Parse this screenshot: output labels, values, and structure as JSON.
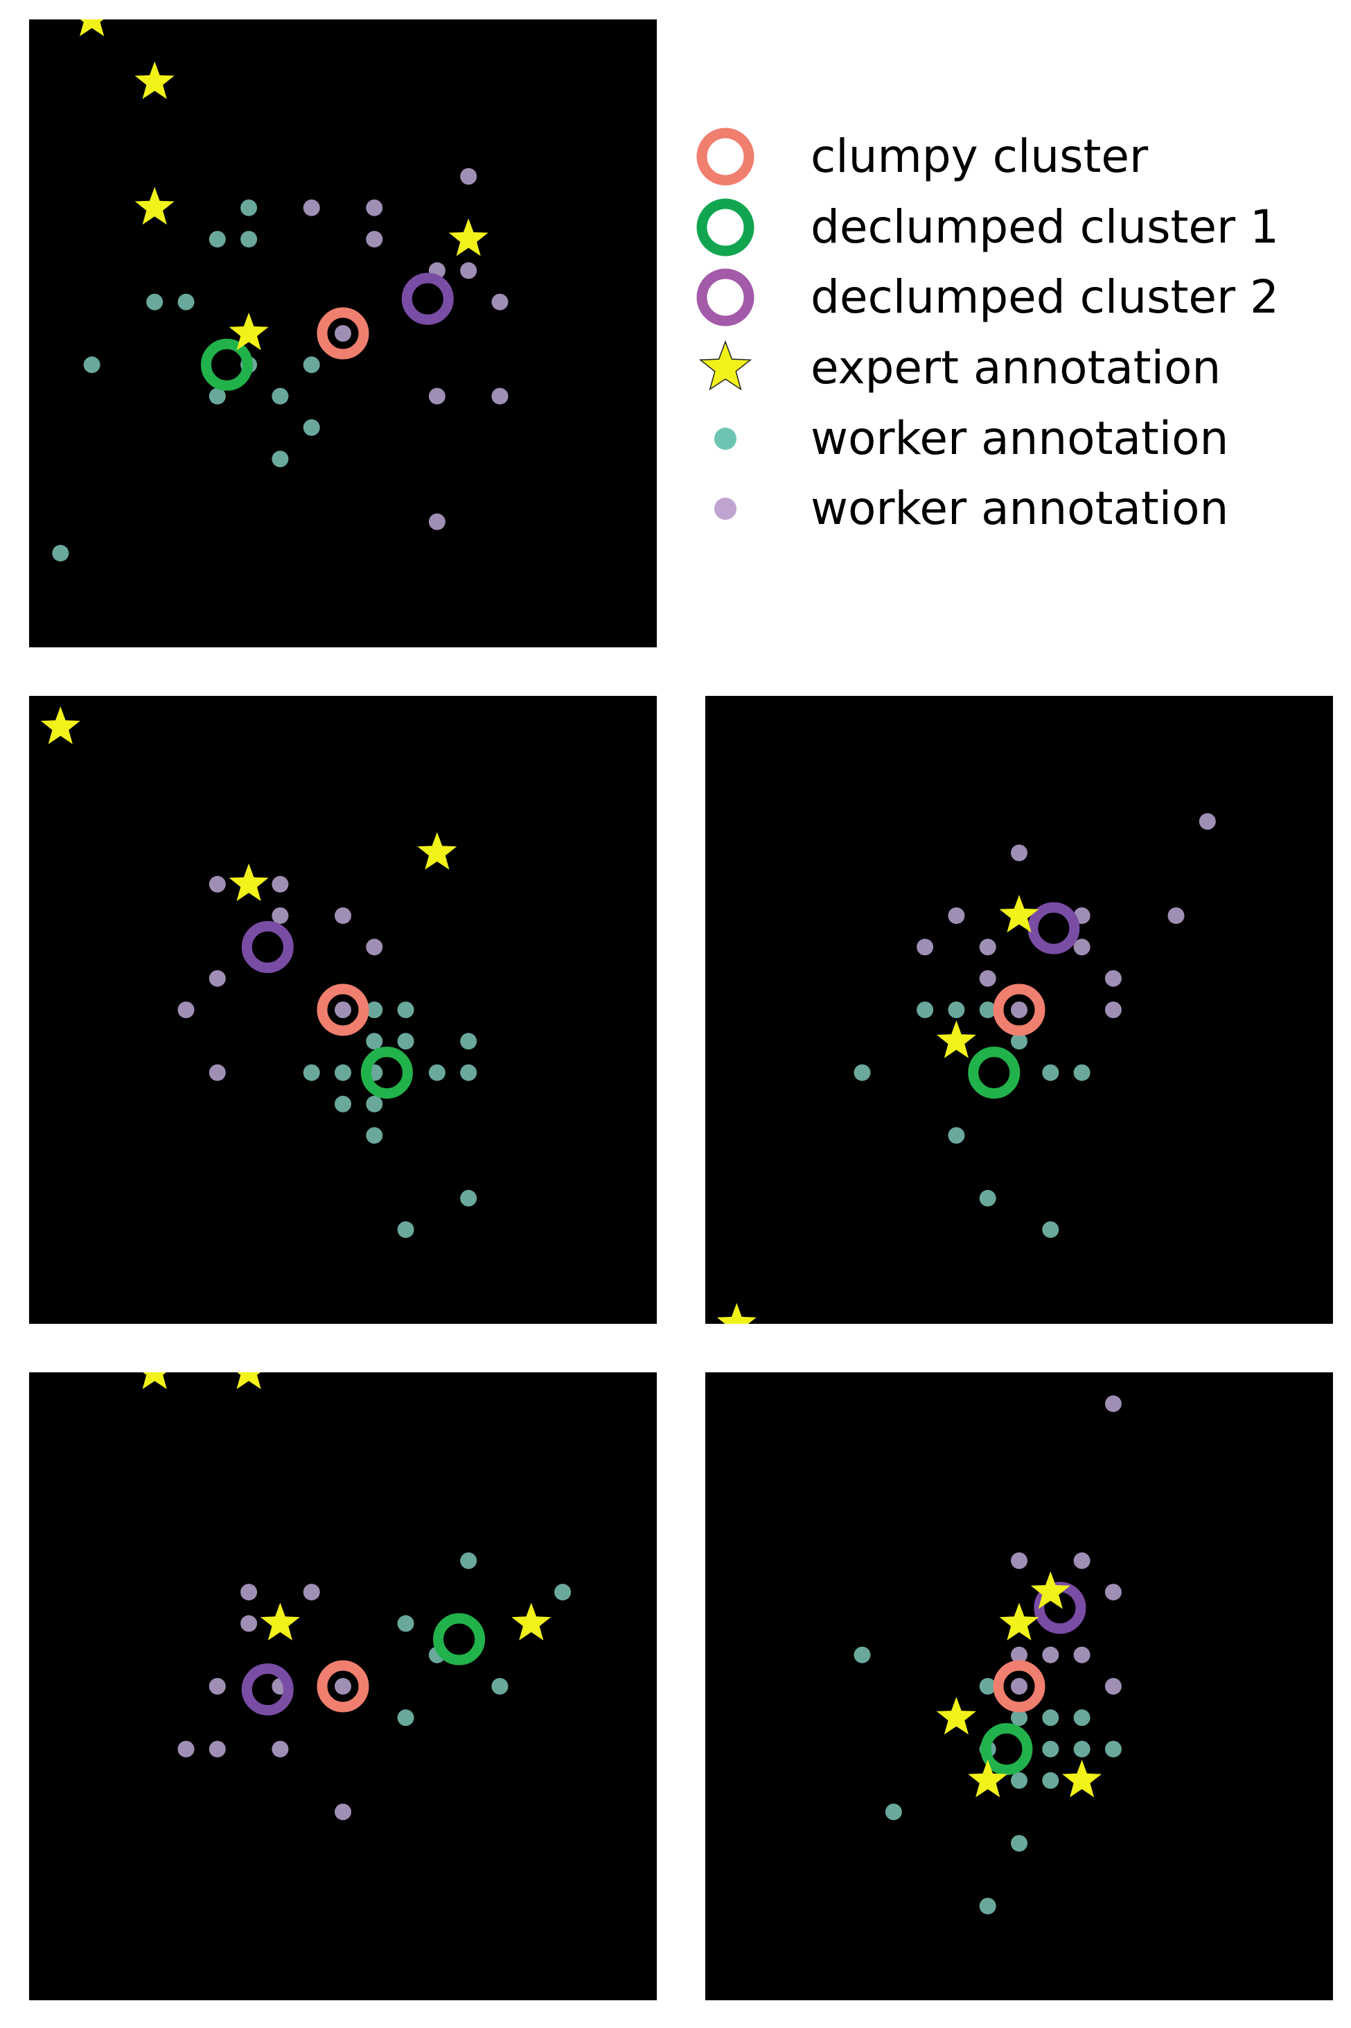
{
  "legend": {
    "entries": [
      {
        "key": "clumpy",
        "label": "clumpy cluster",
        "marker": "ring",
        "color": "#f07f6f"
      },
      {
        "key": "declump1",
        "label": "declumped cluster 1",
        "marker": "ring",
        "color": "#11a54f"
      },
      {
        "key": "declump2",
        "label": "declumped cluster 2",
        "marker": "ring",
        "color": "#a35aa9"
      },
      {
        "key": "expert",
        "label": "expert annotation",
        "marker": "star",
        "color": "#f2f21b"
      },
      {
        "key": "worker_teal",
        "label": "worker annotation",
        "marker": "dot",
        "color": "#6dc4b2"
      },
      {
        "key": "worker_purple",
        "label": "worker annotation",
        "marker": "dot",
        "color": "#bfa3d1"
      }
    ]
  },
  "colors": {
    "panel_bg": "#000000",
    "ring_clumpy": "#f07f6f",
    "ring_d1": "#22b24c",
    "ring_d2": "#7a4da5",
    "star": "#f2f21b",
    "worker_teal": "#6aa89c",
    "worker_purple": "#a08fb5",
    "page_bg": "#ffffff"
  },
  "chart_data": [
    {
      "type": "scatter",
      "panel": "top-left",
      "xlim": [
        0,
        20
      ],
      "ylim": [
        0,
        20
      ],
      "grid": false,
      "stars": [
        [
          2,
          20
        ],
        [
          4,
          18
        ],
        [
          4,
          14
        ],
        [
          14,
          13
        ],
        [
          7,
          10
        ]
      ],
      "teal": [
        [
          7,
          14
        ],
        [
          6,
          13
        ],
        [
          7,
          13
        ],
        [
          4,
          11
        ],
        [
          5,
          11
        ],
        [
          2,
          9
        ],
        [
          7,
          9
        ],
        [
          9,
          9
        ],
        [
          6,
          8
        ],
        [
          8,
          8
        ],
        [
          9,
          7
        ],
        [
          8,
          6
        ],
        [
          1,
          3
        ]
      ],
      "purple": [
        [
          9,
          14
        ],
        [
          11,
          14
        ],
        [
          11,
          13
        ],
        [
          14,
          15
        ],
        [
          13,
          12
        ],
        [
          14,
          12
        ],
        [
          15,
          11
        ],
        [
          10,
          10
        ],
        [
          13,
          8
        ],
        [
          15,
          8
        ],
        [
          13,
          4
        ]
      ],
      "clumpy": [
        10,
        10
      ],
      "declump1": [
        6.3,
        9
      ],
      "declump2": [
        12.7,
        11.1
      ]
    },
    {
      "type": "scatter",
      "panel": "middle-left",
      "xlim": [
        0,
        20
      ],
      "ylim": [
        0,
        20
      ],
      "grid": false,
      "stars": [
        [
          1,
          19
        ],
        [
          13,
          15
        ],
        [
          7,
          14
        ]
      ],
      "teal": [
        [
          11,
          10
        ],
        [
          12,
          10
        ],
        [
          11,
          9
        ],
        [
          12,
          9
        ],
        [
          9,
          8
        ],
        [
          10,
          8
        ],
        [
          11,
          8
        ],
        [
          13,
          8
        ],
        [
          14,
          8
        ],
        [
          14,
          9
        ],
        [
          11,
          7
        ],
        [
          10,
          7
        ],
        [
          11,
          6
        ],
        [
          14,
          4
        ],
        [
          12,
          3
        ]
      ],
      "purple": [
        [
          6,
          14
        ],
        [
          8,
          14
        ],
        [
          8,
          13
        ],
        [
          10,
          13
        ],
        [
          11,
          12
        ],
        [
          6,
          11
        ],
        [
          5,
          10
        ],
        [
          6,
          8
        ],
        [
          10,
          10
        ]
      ],
      "clumpy": [
        10,
        10
      ],
      "declump1": [
        11.4,
        8
      ],
      "declump2": [
        7.6,
        12
      ]
    },
    {
      "type": "scatter",
      "panel": "middle-right",
      "xlim": [
        0,
        20
      ],
      "ylim": [
        0,
        20
      ],
      "grid": false,
      "stars": [
        [
          1,
          0
        ],
        [
          10,
          13
        ],
        [
          8,
          9
        ]
      ],
      "teal": [
        [
          7,
          10
        ],
        [
          8,
          10
        ],
        [
          9,
          10
        ],
        [
          10,
          9
        ],
        [
          11,
          8
        ],
        [
          12,
          8
        ],
        [
          5,
          8
        ],
        [
          8,
          6
        ],
        [
          9,
          4
        ],
        [
          11,
          3
        ]
      ],
      "purple": [
        [
          16,
          16
        ],
        [
          10,
          15
        ],
        [
          8,
          13
        ],
        [
          7,
          12
        ],
        [
          9,
          12
        ],
        [
          12,
          13
        ],
        [
          12,
          12
        ],
        [
          15,
          13
        ],
        [
          9,
          11
        ],
        [
          13,
          11
        ],
        [
          13,
          10
        ],
        [
          10,
          10
        ]
      ],
      "clumpy": [
        10,
        10
      ],
      "declump1": [
        9.2,
        8
      ],
      "declump2": [
        11.1,
        12.6
      ]
    },
    {
      "type": "scatter",
      "panel": "bottom-left",
      "xlim": [
        0,
        20
      ],
      "ylim": [
        0,
        20
      ],
      "grid": false,
      "stars": [
        [
          4,
          20
        ],
        [
          7,
          20
        ],
        [
          8,
          12
        ],
        [
          16,
          12
        ]
      ],
      "teal": [
        [
          14,
          14
        ],
        [
          17,
          13
        ],
        [
          12,
          12
        ],
        [
          13,
          11
        ],
        [
          15,
          10
        ],
        [
          12,
          9
        ]
      ],
      "purple": [
        [
          7,
          13
        ],
        [
          9,
          13
        ],
        [
          7,
          12
        ],
        [
          6,
          10
        ],
        [
          8,
          10
        ],
        [
          5,
          8
        ],
        [
          6,
          8
        ],
        [
          8,
          8
        ],
        [
          10,
          6
        ],
        [
          10,
          10
        ]
      ],
      "clumpy": [
        10,
        10
      ],
      "declump1": [
        13.7,
        11.5
      ],
      "declump2": [
        7.6,
        9.9
      ]
    },
    {
      "type": "scatter",
      "panel": "bottom-right",
      "xlim": [
        0,
        20
      ],
      "ylim": [
        0,
        20
      ],
      "grid": false,
      "stars": [
        [
          11,
          13
        ],
        [
          10,
          12
        ],
        [
          8,
          9
        ],
        [
          9,
          7
        ],
        [
          12,
          7
        ]
      ],
      "teal": [
        [
          5,
          11
        ],
        [
          9,
          10
        ],
        [
          10,
          9
        ],
        [
          11,
          9
        ],
        [
          12,
          9
        ],
        [
          9,
          8
        ],
        [
          11,
          8
        ],
        [
          12,
          8
        ],
        [
          13,
          8
        ],
        [
          10,
          7
        ],
        [
          11,
          7
        ],
        [
          6,
          6
        ],
        [
          10,
          5
        ],
        [
          9,
          3
        ]
      ],
      "purple": [
        [
          13,
          19
        ],
        [
          10,
          14
        ],
        [
          12,
          14
        ],
        [
          13,
          13
        ],
        [
          11,
          11
        ],
        [
          12,
          11
        ],
        [
          10,
          11
        ],
        [
          13,
          10
        ],
        [
          10,
          10
        ]
      ],
      "clumpy": [
        10,
        10
      ],
      "declump1": [
        9.6,
        8
      ],
      "declump2": [
        11.3,
        12.5
      ]
    }
  ]
}
